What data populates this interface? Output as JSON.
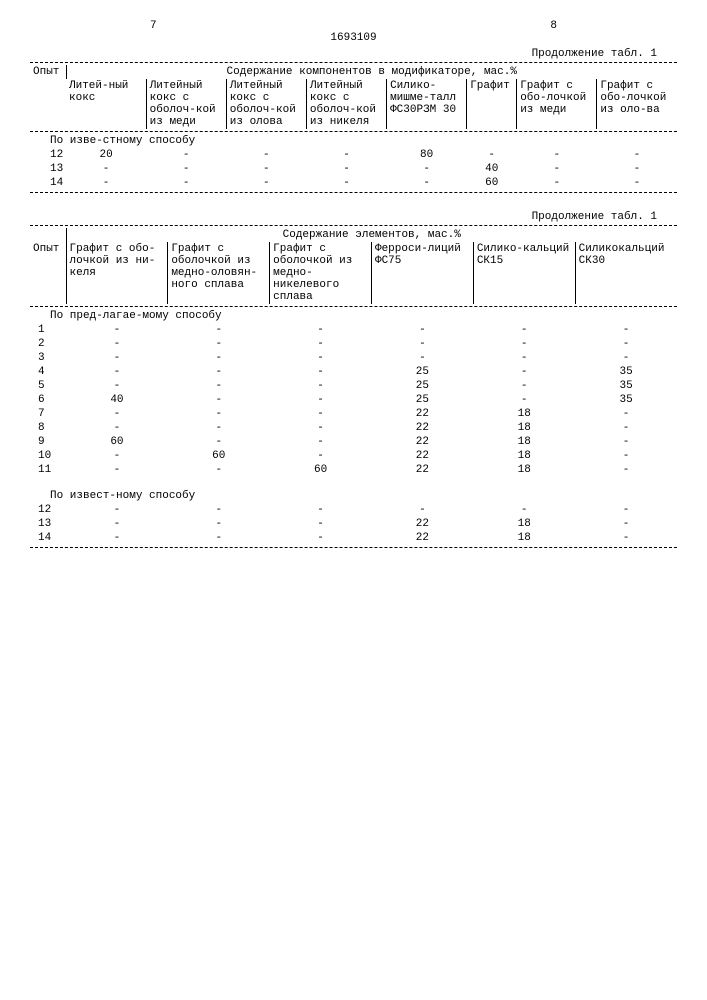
{
  "page_left": "7",
  "doc_number": "1693109",
  "page_right": "8",
  "table1": {
    "caption": "Продолжение табл. 1",
    "col_exp": "Опыт",
    "span_header": "Содержание компонентов в модификаторе, мас.%",
    "cols": [
      "Литей-ный кокс",
      "Литейный кокс с оболоч-кой из меди",
      "Литейный кокс с оболоч-кой из олова",
      "Литейный кокс с оболоч-кой из никеля",
      "Силико-мишме-талл ФС30РЗМ 30",
      "Графит",
      "Графит с обо-лочкой из меди",
      "Графит с обо-лочкой из оло-ва"
    ],
    "section_label": "По изве-стному способу",
    "rows": [
      [
        "12",
        "20",
        "-",
        "-",
        "-",
        "80",
        "-",
        "-",
        "-"
      ],
      [
        "13",
        "-",
        "-",
        "-",
        "-",
        "-",
        "40",
        "-",
        "-"
      ],
      [
        "14",
        "-",
        "-",
        "-",
        "-",
        "-",
        "60",
        "-",
        "-"
      ]
    ]
  },
  "table2": {
    "caption": "Продолжение табл. 1",
    "col_exp": "Опыт",
    "span_header": "Содержание элементов, мас.%",
    "cols": [
      "Графит с обо-лочкой из ни-келя",
      "Графит с оболочкой из медно-оловян-ного сплава",
      "Графит с оболочкой из медно-никелевого сплава",
      "Ферроси-лиций ФС75",
      "Силико-кальций СК15",
      "Силикокальций СК30"
    ],
    "section1_label": "По пред-лагае-мому способу",
    "rows1": [
      [
        "1",
        "-",
        "-",
        "-",
        "-",
        "-",
        "-"
      ],
      [
        "2",
        "-",
        "-",
        "-",
        "-",
        "-",
        "-"
      ],
      [
        "3",
        "-",
        "-",
        "-",
        "-",
        "-",
        "-"
      ],
      [
        "4",
        "-",
        "-",
        "-",
        "25",
        "-",
        "35"
      ],
      [
        "5",
        "-",
        "-",
        "-",
        "25",
        "-",
        "35"
      ],
      [
        "6",
        "40",
        "-",
        "-",
        "25",
        "-",
        "35"
      ],
      [
        "7",
        "-",
        "-",
        "-",
        "22",
        "18",
        "-"
      ],
      [
        "8",
        "-",
        "-",
        "-",
        "22",
        "18",
        "-"
      ],
      [
        "9",
        "60",
        "-",
        "-",
        "22",
        "18",
        "-"
      ],
      [
        "10",
        "-",
        "60",
        "-",
        "22",
        "18",
        "-"
      ],
      [
        "11",
        "-",
        "-",
        "60",
        "22",
        "18",
        "-"
      ]
    ],
    "section2_label": "По извест-ному способу",
    "rows2": [
      [
        "12",
        "-",
        "-",
        "-",
        "-",
        "-",
        "-"
      ],
      [
        "13",
        "-",
        "-",
        "-",
        "22",
        "18",
        "-"
      ],
      [
        "14",
        "-",
        "-",
        "-",
        "22",
        "18",
        "-"
      ]
    ]
  }
}
